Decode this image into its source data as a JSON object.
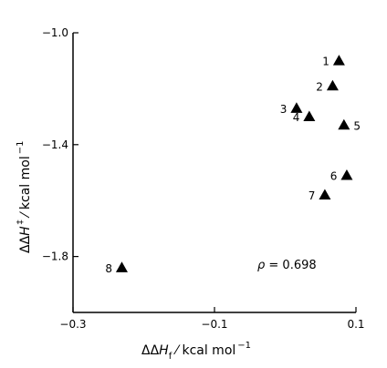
{
  "chart_data": {
    "type": "scatter",
    "title": "",
    "xlabel": {
      "main": "ΔΔ",
      "symbol": "H",
      "sub": "f",
      "unit": " ⁄ kcal mol",
      "exp": "−1"
    },
    "ylabel": {
      "main": "ΔΔ",
      "symbol": "H",
      "sup": "‡",
      "unit": " ⁄ kcal mol",
      "exp": "−1"
    },
    "xlim": [
      -0.3,
      0.1
    ],
    "ylim": [
      -2.0,
      -1.0
    ],
    "x_ticks": [
      -0.3,
      -0.1,
      0.1
    ],
    "x_tick_labels": [
      "−0.3",
      "−0.1",
      "0.1"
    ],
    "y_ticks": [
      -1.0,
      -1.4,
      -1.8
    ],
    "y_tick_labels": [
      "−1.0",
      "−1.4",
      "−1.8"
    ],
    "grid": false,
    "marker": "triangle",
    "marker_color": "#000000",
    "points": [
      {
        "label": "1",
        "x": 0.076,
        "y": -1.1
      },
      {
        "label": "2",
        "x": 0.067,
        "y": -1.19
      },
      {
        "label": "3",
        "x": 0.016,
        "y": -1.27
      },
      {
        "label": "4",
        "x": 0.034,
        "y": -1.3
      },
      {
        "label": "5",
        "x": 0.083,
        "y": -1.33
      },
      {
        "label": "6",
        "x": 0.087,
        "y": -1.51
      },
      {
        "label": "7",
        "x": 0.056,
        "y": -1.58
      },
      {
        "label": "8",
        "x": -0.231,
        "y": -1.84
      }
    ],
    "annotation": {
      "symbol": "ρ",
      "text": " = 0.698"
    }
  }
}
